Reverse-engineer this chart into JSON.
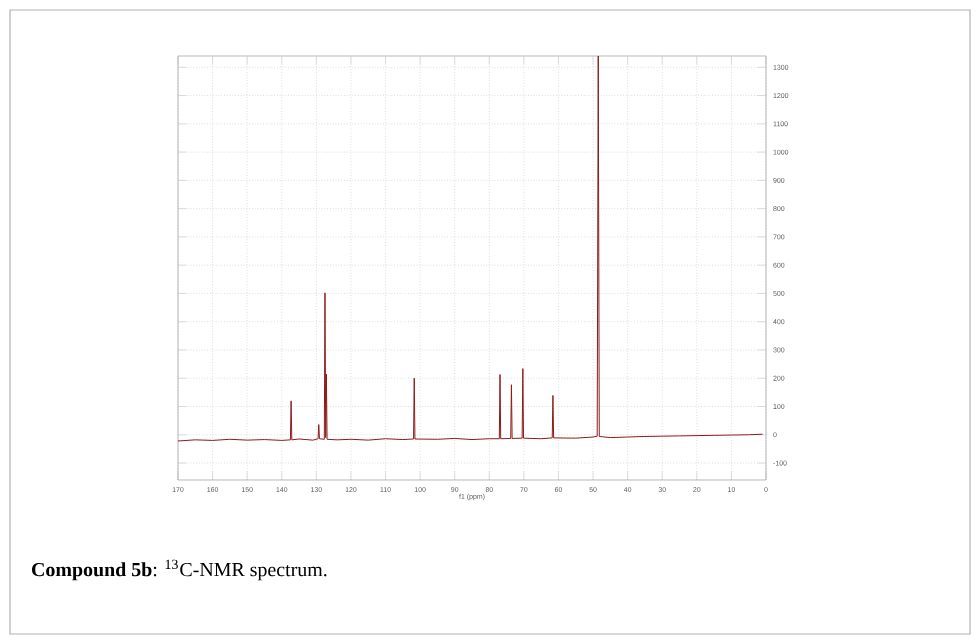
{
  "chart_data": {
    "type": "line",
    "xlabel": "f1 (ppm)",
    "annotations": [
      "**Compound 5b**: $^{13}$C-NMR spectrum."
    ],
    "x": [
      170,
      165,
      160,
      155,
      150,
      145,
      140,
      137.5,
      137.3,
      137.1,
      135,
      131,
      129.5,
      129.3,
      129.1,
      127.7,
      127.5,
      127.3,
      127.1,
      126.9,
      124,
      120,
      115,
      110,
      105,
      101.9,
      101.7,
      101.5,
      95,
      90,
      85,
      80,
      77.1,
      76.9,
      76.7,
      73.8,
      73.6,
      73.4,
      70.5,
      70.3,
      70.1,
      65,
      61.8,
      61.6,
      61.4,
      55,
      50,
      48.8,
      48.5,
      48.2,
      45,
      40,
      35,
      30,
      25,
      20,
      15,
      10,
      5,
      1
    ],
    "series": [
      {
        "color": "#8b1a1a",
        "values": [
          -22,
          -18,
          -20,
          -16,
          -19,
          -17,
          -20,
          -18,
          120,
          -18,
          -15,
          -19,
          -14,
          36,
          -14,
          -16,
          502,
          -10,
          215,
          -16,
          -18,
          -16,
          -19,
          -14,
          -17,
          -15,
          200,
          -15,
          -16,
          -13,
          -17,
          -14,
          -14,
          213,
          -14,
          -13,
          177,
          -13,
          -12,
          234,
          -12,
          -14,
          -11,
          139,
          -11,
          -12,
          -8,
          -5,
          1340,
          -6,
          -10,
          -8,
          -6,
          -5,
          -4,
          -3,
          -2,
          -1,
          0,
          2
        ]
      }
    ],
    "xlim": [
      170,
      0
    ],
    "ylim": [
      -160,
      1340
    ],
    "xticks": [
      170,
      160,
      150,
      140,
      130,
      120,
      110,
      100,
      90,
      80,
      70,
      60,
      50,
      40,
      30,
      20,
      10,
      0
    ],
    "yticks": [
      -100,
      0,
      100,
      200,
      300,
      400,
      500,
      600,
      700,
      800,
      900,
      1000,
      1100,
      1200,
      1300
    ],
    "grid": true,
    "marker": "none",
    "line_style": "solid"
  }
}
